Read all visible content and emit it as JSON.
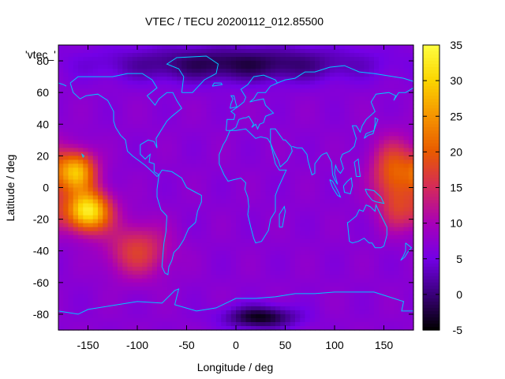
{
  "chart_data": {
    "type": "heatmap",
    "title": "VTEC / TECU 20200112_012.85500",
    "xlabel": "Longitude / deg",
    "ylabel": "Latitude / deg",
    "xlim": [
      -180,
      180
    ],
    "ylim": [
      -90,
      90
    ],
    "xticks": [
      -150,
      -100,
      -50,
      0,
      50,
      100,
      150
    ],
    "yticks": [
      -80,
      -60,
      -40,
      -20,
      0,
      20,
      40,
      60,
      80
    ],
    "colorbar": {
      "range": [
        -5,
        35
      ],
      "ticks": [
        -5,
        0,
        5,
        10,
        15,
        20,
        25,
        30,
        35
      ],
      "colors": [
        "#000000",
        "#3a007a",
        "#7300e6",
        "#a800b8",
        "#d42a5a",
        "#e85a00",
        "#f59400",
        "#fbd400",
        "#ffff40"
      ]
    },
    "background_level": 7,
    "features": [
      {
        "name": "Pacific crest north",
        "lon": -162,
        "lat": 10,
        "peak": 28,
        "sigma_lon": 14,
        "sigma_lat": 9
      },
      {
        "name": "Pacific crest south",
        "lon": -150,
        "lat": -15,
        "peak": 33,
        "sigma_lon": 16,
        "sigma_lat": 9
      },
      {
        "name": "South American anomaly",
        "lon": -100,
        "lat": -40,
        "peak": 17,
        "sigma_lon": 22,
        "sigma_lat": 12
      },
      {
        "name": "Western Pacific crest",
        "lon": 160,
        "lat": 10,
        "peak": 20,
        "sigma_lon": 16,
        "sigma_lat": 14
      },
      {
        "name": "Australian region",
        "lon": 165,
        "lat": -15,
        "peak": 14,
        "sigma_lon": 14,
        "sigma_lat": 10
      },
      {
        "name": "Antarctic depletion",
        "lon": 25,
        "lat": -82,
        "peak": -4,
        "sigma_lon": 25,
        "sigma_lat": 5
      },
      {
        "name": "Polar cap low",
        "lon": 0,
        "lat": 78,
        "peak": -2,
        "sigma_lon": 90,
        "sigma_lat": 8
      }
    ],
    "overlay": "coastlines",
    "annotations": [
      "'vtec_'"
    ]
  }
}
